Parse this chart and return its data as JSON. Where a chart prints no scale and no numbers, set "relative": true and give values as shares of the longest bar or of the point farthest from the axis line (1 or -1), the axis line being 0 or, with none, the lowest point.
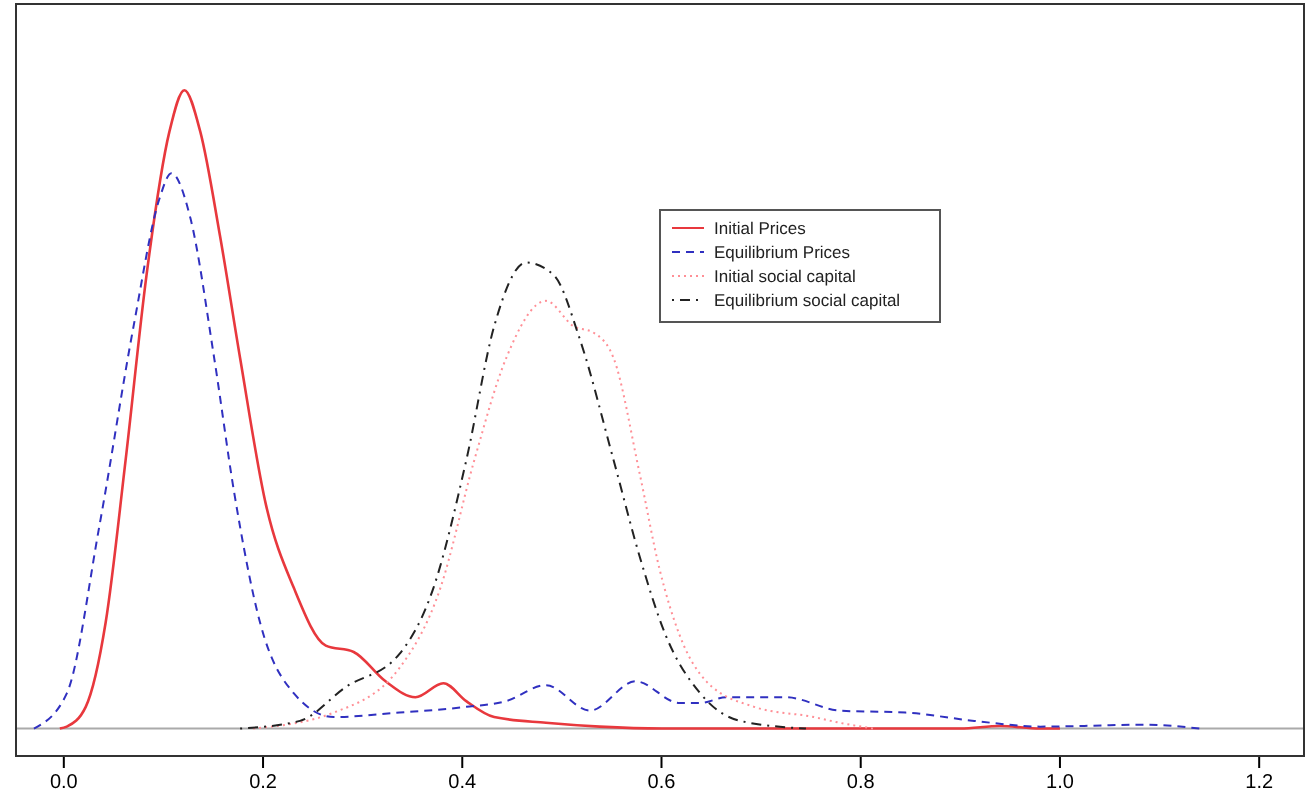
{
  "chart_data": {
    "type": "line",
    "relative": true,
    "xlim": [
      -0.048,
      1.245
    ],
    "xticks": [
      {
        "value": 0,
        "label": "0.0"
      },
      {
        "value": 0.2,
        "label": "0.2"
      },
      {
        "value": 0.4,
        "label": "0.4"
      },
      {
        "value": 0.6,
        "label": "0.6"
      },
      {
        "value": 0.8,
        "label": "0.8"
      },
      {
        "value": 1,
        "label": "1.0"
      },
      {
        "value": 1.2,
        "label": "1.2"
      }
    ],
    "tick_labels": "x",
    "grid": false,
    "legend": "top right",
    "marker": "none",
    "series": [
      {
        "name": "Initial Prices",
        "color": "#e8383d",
        "line_style": "solid",
        "x": [
          -0.004,
          0.003,
          0.022,
          0.042,
          0.062,
          0.083,
          0.106,
          0.121,
          0.137,
          0.157,
          0.177,
          0.203,
          0.231,
          0.263,
          0.291,
          0.323,
          0.353,
          0.381,
          0.404,
          0.432,
          0.484,
          0.538,
          0.6,
          0.9,
          0.94,
          0.98,
          1.0
        ],
        "values": [
          0,
          0.003,
          0.034,
          0.166,
          0.42,
          0.71,
          0.935,
          1.0,
          0.935,
          0.77,
          0.58,
          0.35,
          0.22,
          0.13,
          0.12,
          0.074,
          0.049,
          0.071,
          0.043,
          0.018,
          0.009,
          0.003,
          0,
          0,
          0.004,
          0,
          0
        ]
      },
      {
        "name": "Equilibrium Prices",
        "color": "#3030c0",
        "line_style": "dashed",
        "x": [
          -0.03,
          0.003,
          0.036,
          0.07,
          0.096,
          0.108,
          0.127,
          0.151,
          0.171,
          0.197,
          0.231,
          0.271,
          0.337,
          0.404,
          0.444,
          0.484,
          0.528,
          0.574,
          0.618,
          0.639,
          0.665,
          0.725,
          0.779,
          0.845,
          0.914,
          0.98,
          1.086,
          1.14
        ],
        "values": [
          0,
          0.055,
          0.32,
          0.63,
          0.83,
          0.87,
          0.8,
          0.58,
          0.37,
          0.166,
          0.055,
          0.018,
          0.025,
          0.034,
          0.043,
          0.068,
          0.028,
          0.074,
          0.04,
          0.04,
          0.049,
          0.049,
          0.028,
          0.025,
          0.012,
          0.003,
          0.006,
          0
        ]
      },
      {
        "name": "Initial social capital",
        "color": "#ff8f96",
        "line_style": "dotted",
        "x": [
          0.19,
          0.271,
          0.337,
          0.378,
          0.412,
          0.444,
          0.484,
          0.512,
          0.532,
          0.552,
          0.578,
          0.598,
          0.618,
          0.645,
          0.693,
          0.753,
          0.779,
          0.813
        ],
        "values": [
          0,
          0.025,
          0.095,
          0.22,
          0.42,
          0.58,
          0.67,
          0.63,
          0.62,
          0.58,
          0.4,
          0.25,
          0.147,
          0.074,
          0.034,
          0.018,
          0.009,
          0
        ]
      },
      {
        "name": "Equilibrium social capital",
        "color": "#222222",
        "line_style": "dotdash",
        "x": [
          0.177,
          0.237,
          0.283,
          0.337,
          0.371,
          0.404,
          0.432,
          0.464,
          0.492,
          0.518,
          0.552,
          0.578,
          0.604,
          0.639,
          0.679,
          0.745
        ],
        "values": [
          0,
          0.012,
          0.065,
          0.117,
          0.22,
          0.42,
          0.63,
          0.73,
          0.71,
          0.61,
          0.42,
          0.27,
          0.147,
          0.055,
          0.012,
          0
        ]
      }
    ]
  }
}
